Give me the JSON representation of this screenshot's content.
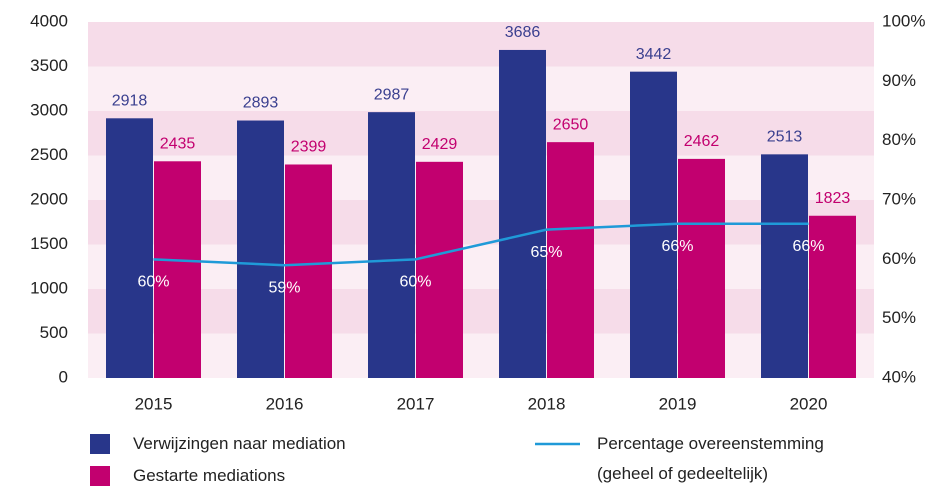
{
  "chart_data": {
    "type": "bar",
    "categories": [
      "2015",
      "2016",
      "2017",
      "2018",
      "2019",
      "2020"
    ],
    "series": [
      {
        "name": "Verwijzingen naar mediation",
        "color": "#28368a",
        "values": [
          2918,
          2893,
          2987,
          3686,
          3442,
          2513
        ]
      },
      {
        "name": "Gestarte mediations",
        "color": "#c2006f",
        "values": [
          2435,
          2399,
          2429,
          2650,
          2462,
          1823
        ]
      },
      {
        "name": "Percentage overeenstemming (geheel of gedeeltelijk)",
        "type": "line",
        "axis": "y2",
        "color": "#1f9ad8",
        "values": [
          60,
          59,
          60,
          65,
          66,
          66
        ],
        "value_labels": [
          "60%",
          "59%",
          "60%",
          "65%",
          "66%",
          "66%"
        ]
      }
    ],
    "ylim": [
      0,
      4000
    ],
    "yticks": [
      0,
      500,
      1000,
      1500,
      2000,
      2500,
      3000,
      3500,
      4000
    ],
    "y2lim": [
      40,
      100
    ],
    "y2ticks": [
      {
        "value": 40,
        "label": "40%"
      },
      {
        "value": 50,
        "label": "50%"
      },
      {
        "value": 60,
        "label": "60%"
      },
      {
        "value": 70,
        "label": "70%"
      },
      {
        "value": 80,
        "label": "80%"
      },
      {
        "value": 90,
        "label": "90%"
      },
      {
        "value": 100,
        "label": "100%"
      }
    ],
    "legend": "bottom"
  }
}
